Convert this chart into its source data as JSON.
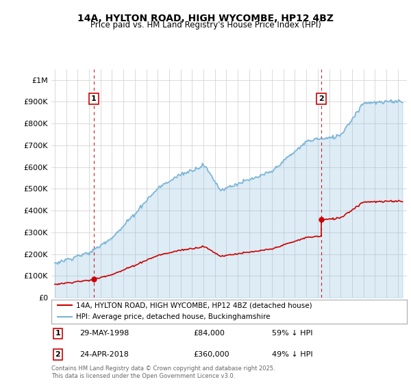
{
  "title": "14A, HYLTON ROAD, HIGH WYCOMBE, HP12 4BZ",
  "subtitle": "Price paid vs. HM Land Registry's House Price Index (HPI)",
  "sale1_date": "29-MAY-1998",
  "sale1_price": 84000,
  "sale1_label": "59% ↓ HPI",
  "sale1_x": 1998.41,
  "sale2_date": "24-APR-2018",
  "sale2_price": 360000,
  "sale2_label": "49% ↓ HPI",
  "sale2_x": 2018.31,
  "legend_label1": "14A, HYLTON ROAD, HIGH WYCOMBE, HP12 4BZ (detached house)",
  "legend_label2": "HPI: Average price, detached house, Buckinghamshire",
  "footer": "Contains HM Land Registry data © Crown copyright and database right 2025.\nThis data is licensed under the Open Government Licence v3.0.",
  "hpi_color": "#7ab4d8",
  "hpi_fill": "#ddeef8",
  "price_color": "#cc0000",
  "vline_color": "#cc0000",
  "background_color": "#ffffff",
  "grid_color": "#cccccc",
  "ylim_max": 1050000,
  "xlim_min": 1994.7,
  "xlim_max": 2025.8
}
